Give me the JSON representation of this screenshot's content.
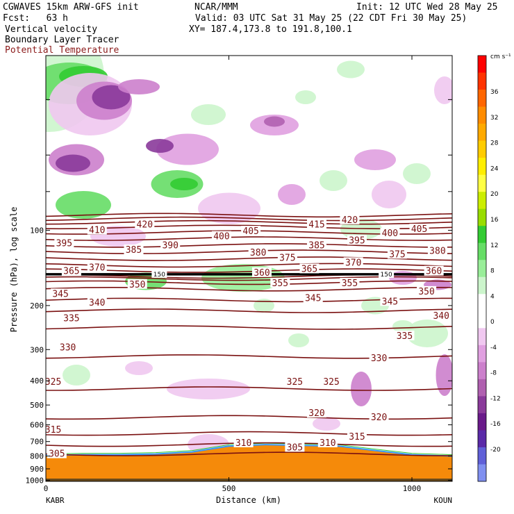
{
  "header": {
    "model": "CGWAVES 15km ARW-GFS init",
    "org": "NCAR/MMM",
    "init": "Init: 12 UTC Wed 28 May 25",
    "fcst": "Fcst:   63 h",
    "valid": "Valid: 03 UTC Sat 31 May 25 (22 CDT Fri 30 May 25)",
    "xy": "XY= 187.4,173.8 to 191.8,100.1",
    "field1": "Vertical velocity",
    "field2": "Boundary Layer Tracer",
    "field3": "Potential Temperature"
  },
  "colors": {
    "theta_line": "#7a1010",
    "terrain": "#f58a0a",
    "tropopause": "#000000"
  },
  "chart_data": {
    "type": "cross-section",
    "xlabel": "Distance (km)",
    "ylabel": "Pressure (hPa), log scale",
    "x_ticks": [
      0,
      500,
      1000
    ],
    "xlim": [
      0,
      1110
    ],
    "y_ticks": [
      100,
      200,
      300,
      400,
      500,
      600,
      700,
      800,
      900,
      1000
    ],
    "ylim": [
      1010,
      20
    ],
    "y_scale": "log",
    "left_endpoint": "KABR",
    "right_endpoint": "KOUN",
    "colorbar": {
      "units": "cm s⁻¹",
      "ticks": [
        36,
        32,
        28,
        24,
        20,
        16,
        12,
        8,
        4,
        0,
        -4,
        -8,
        -12,
        -16,
        -20
      ],
      "colors": [
        "#ff0000",
        "#ff3300",
        "#ff6600",
        "#ff8c00",
        "#ffaa00",
        "#ffcc00",
        "#ffee00",
        "#ffff44",
        "#ccee00",
        "#99dd00",
        "#33cc33",
        "#66dd66",
        "#99ee99",
        "#ccf5cc",
        "#ffffff",
        "#ffffff",
        "#f0c8f0",
        "#e0a0e0",
        "#cc80cc",
        "#b060b0",
        "#8a3a9a",
        "#6a1a8a",
        "#5a2aa8",
        "#6060d8",
        "#8090f0"
      ]
    },
    "theta_contours": [
      {
        "label": "305",
        "pressure": 785
      },
      {
        "label": "310",
        "pressure": 720
      },
      {
        "label": "315",
        "pressure": 650
      },
      {
        "label": "320",
        "pressure": 560
      },
      {
        "label": "325",
        "pressure": 430
      },
      {
        "label": "330",
        "pressure": 320
      },
      {
        "label": "335",
        "pressure": 245
      },
      {
        "label": "340",
        "pressure": 210
      },
      {
        "label": "345",
        "pressure": 190
      },
      {
        "label": "350",
        "pressure": 172
      },
      {
        "label": "355",
        "pressure": 162
      },
      {
        "label": "360",
        "pressure": 156
      },
      {
        "label": "365",
        "pressure": 153
      },
      {
        "label": "370",
        "pressure": 145
      },
      {
        "label": "375",
        "pressure": 138
      },
      {
        "label": "380",
        "pressure": 130
      },
      {
        "label": "385",
        "pressure": 122
      },
      {
        "label": "390",
        "pressure": 115
      },
      {
        "label": "395",
        "pressure": 108
      },
      {
        "label": "400",
        "pressure": 102
      },
      {
        "label": "405",
        "pressure": 97
      },
      {
        "label": "410",
        "pressure": 93
      },
      {
        "label": "415",
        "pressure": 90
      },
      {
        "label": "420",
        "pressure": 87
      }
    ],
    "theta_label_positions": [
      {
        "text": "305",
        "x": 30,
        "p": 785
      },
      {
        "text": "310",
        "x": 540,
        "p": 710
      },
      {
        "text": "305",
        "x": 680,
        "p": 740
      },
      {
        "text": "310",
        "x": 770,
        "p": 710
      },
      {
        "text": "315",
        "x": 20,
        "p": 630
      },
      {
        "text": "315",
        "x": 850,
        "p": 670
      },
      {
        "text": "320",
        "x": 740,
        "p": 540
      },
      {
        "text": "320",
        "x": 910,
        "p": 560
      },
      {
        "text": "325",
        "x": 20,
        "p": 405
      },
      {
        "text": "325",
        "x": 680,
        "p": 405
      },
      {
        "text": "325",
        "x": 780,
        "p": 405
      },
      {
        "text": "330",
        "x": 60,
        "p": 295
      },
      {
        "text": "330",
        "x": 910,
        "p": 325
      },
      {
        "text": "335",
        "x": 70,
        "p": 225
      },
      {
        "text": "335",
        "x": 980,
        "p": 265
      },
      {
        "text": "340",
        "x": 140,
        "p": 195
      },
      {
        "text": "340",
        "x": 1080,
        "p": 220
      },
      {
        "text": "345",
        "x": 40,
        "p": 180
      },
      {
        "text": "345",
        "x": 730,
        "p": 187
      },
      {
        "text": "345",
        "x": 940,
        "p": 193
      },
      {
        "text": "350",
        "x": 250,
        "p": 165
      },
      {
        "text": "350",
        "x": 1040,
        "p": 176
      },
      {
        "text": "355",
        "x": 640,
        "p": 163
      },
      {
        "text": "355",
        "x": 830,
        "p": 163
      },
      {
        "text": "360",
        "x": 590,
        "p": 148
      },
      {
        "text": "360",
        "x": 1060,
        "p": 146
      },
      {
        "text": "365",
        "x": 70,
        "p": 146
      },
      {
        "text": "365",
        "x": 720,
        "p": 143
      },
      {
        "text": "370",
        "x": 140,
        "p": 141
      },
      {
        "text": "370",
        "x": 840,
        "p": 135
      },
      {
        "text": "375",
        "x": 660,
        "p": 129
      },
      {
        "text": "375",
        "x": 960,
        "p": 125
      },
      {
        "text": "380",
        "x": 580,
        "p": 123
      },
      {
        "text": "380",
        "x": 1070,
        "p": 121
      },
      {
        "text": "385",
        "x": 240,
        "p": 120
      },
      {
        "text": "385",
        "x": 740,
        "p": 115
      },
      {
        "text": "390",
        "x": 340,
        "p": 115
      },
      {
        "text": "395",
        "x": 50,
        "p": 113
      },
      {
        "text": "395",
        "x": 850,
        "p": 110
      },
      {
        "text": "400",
        "x": 480,
        "p": 106
      },
      {
        "text": "400",
        "x": 940,
        "p": 103
      },
      {
        "text": "405",
        "x": 560,
        "p": 101
      },
      {
        "text": "405",
        "x": 1020,
        "p": 99
      },
      {
        "text": "410",
        "x": 140,
        "p": 100
      },
      {
        "text": "415",
        "x": 740,
        "p": 95
      },
      {
        "text": "420",
        "x": 270,
        "p": 95
      },
      {
        "text": "420",
        "x": 830,
        "p": 91
      }
    ],
    "tropopause_labels": [
      {
        "text": "150",
        "x": 310,
        "p": 150
      },
      {
        "text": "150",
        "x": 930,
        "p": 150
      }
    ]
  }
}
